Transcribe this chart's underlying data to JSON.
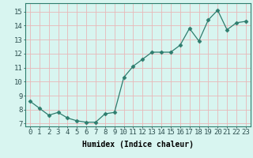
{
  "x": [
    0,
    1,
    2,
    3,
    4,
    5,
    6,
    7,
    8,
    9,
    10,
    11,
    12,
    13,
    14,
    15,
    16,
    17,
    18,
    19,
    20,
    21,
    22,
    23
  ],
  "y": [
    8.6,
    8.1,
    7.6,
    7.8,
    7.4,
    7.2,
    7.1,
    7.1,
    7.7,
    7.8,
    10.3,
    11.1,
    11.6,
    12.1,
    12.1,
    12.1,
    12.6,
    13.8,
    12.9,
    14.4,
    15.1,
    13.7,
    14.2,
    14.3
  ],
  "line_color": "#2e7d6e",
  "marker": "D",
  "marker_size": 2.5,
  "bg_color": "#d8f5f0",
  "grid_color": "#c8e8e0",
  "xlabel": "Humidex (Indice chaleur)",
  "xlabel_fontsize": 7,
  "xtick_labels": [
    "0",
    "1",
    "2",
    "3",
    "4",
    "5",
    "6",
    "7",
    "8",
    "9",
    "10",
    "11",
    "12",
    "13",
    "14",
    "15",
    "16",
    "17",
    "18",
    "19",
    "20",
    "21",
    "22",
    "23"
  ],
  "ytick_values": [
    7,
    8,
    9,
    10,
    11,
    12,
    13,
    14,
    15
  ],
  "ylim": [
    6.8,
    15.6
  ],
  "xlim": [
    -0.5,
    23.5
  ],
  "tick_fontsize": 6.5
}
